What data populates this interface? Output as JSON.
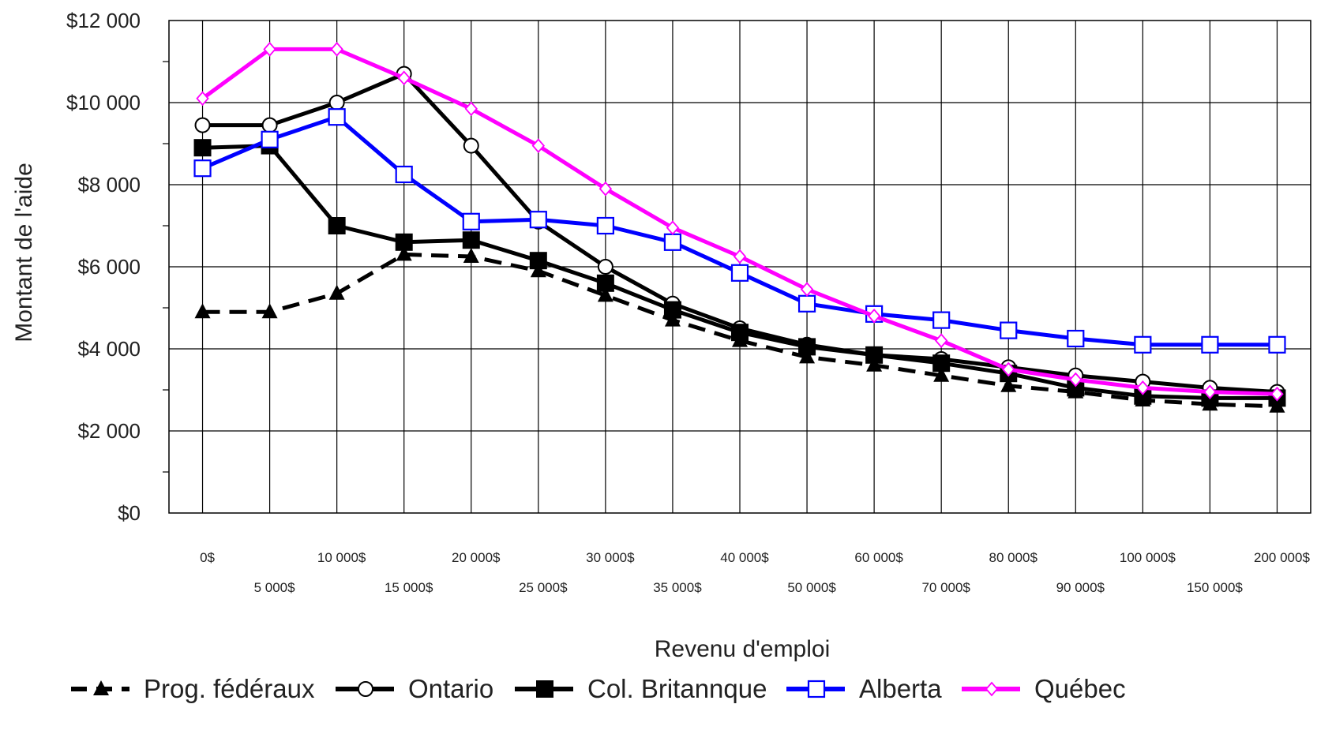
{
  "chart_data": {
    "type": "line",
    "title": "",
    "xlabel": "Revenu d'emploi",
    "ylabel": "Montant de l'aide",
    "ylim": [
      0,
      12000
    ],
    "ytick_labels": [
      "$0",
      "$2 000",
      "$4 000",
      "$6 000",
      "$8 000",
      "$10 000",
      "$12 000"
    ],
    "categories": [
      "0$",
      "5 000$",
      "10 000$",
      "15 000$",
      "20 000$",
      "25 000$",
      "30 000$",
      "35 000$",
      "40 000$",
      "50 000$",
      "60 000$",
      "70 000$",
      "80 000$",
      "90 000$",
      "100 000$",
      "150 000$",
      "200 000$"
    ],
    "grid": true,
    "legend_position": "bottom",
    "series": [
      {
        "name": "Prog. fédéraux",
        "color": "#000000",
        "dash": true,
        "marker": "triangle",
        "values": [
          4900,
          4900,
          5350,
          6300,
          6250,
          5900,
          5300,
          4700,
          4200,
          3800,
          3600,
          3350,
          3100,
          2950,
          2750,
          2650,
          2600
        ]
      },
      {
        "name": "Ontario",
        "color": "#000000",
        "dash": false,
        "marker": "circle",
        "values": [
          9450,
          9450,
          10000,
          10700,
          8950,
          7100,
          6000,
          5100,
          4500,
          4100,
          3850,
          3750,
          3550,
          3350,
          3200,
          3050,
          2950
        ]
      },
      {
        "name": "Col. Britannque",
        "color": "#000000",
        "dash": false,
        "marker": "filled-square",
        "values": [
          8900,
          8950,
          7000,
          6600,
          6650,
          6150,
          5600,
          4950,
          4400,
          4050,
          3850,
          3650,
          3400,
          3050,
          2850,
          2800,
          2800
        ]
      },
      {
        "name": "Alberta",
        "color": "#0000ff",
        "dash": false,
        "marker": "open-square",
        "values": [
          8400,
          9100,
          9650,
          8250,
          7100,
          7150,
          7000,
          6600,
          5850,
          5100,
          4850,
          4700,
          4450,
          4250,
          4100,
          4100,
          4100
        ]
      },
      {
        "name": "Québec",
        "color": "#ff00ff",
        "dash": false,
        "marker": "diamond",
        "values": [
          10100,
          11300,
          11300,
          10600,
          9850,
          8950,
          7900,
          6950,
          6250,
          5450,
          4800,
          4200,
          3500,
          3250,
          3050,
          2950,
          2900
        ]
      }
    ]
  }
}
